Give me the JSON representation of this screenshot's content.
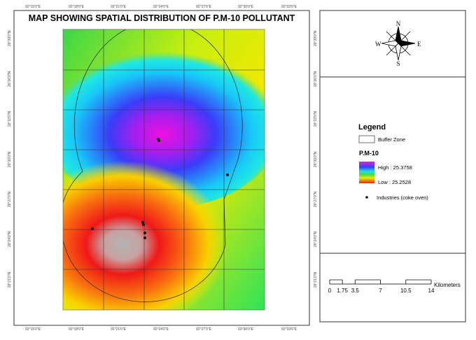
{
  "title": "MAP SHOWING SPATIAL DISTRIBUTION OF P.M-10 POLLUTANT",
  "map": {
    "top_labels": [
      "92°15'0\"E",
      "92°18'0\"E",
      "92°21'0\"E",
      "92°24'0\"E",
      "92°27'0\"E",
      "92°30'0\"E",
      "92°33'0\"E"
    ],
    "bottom_labels": [
      "92°15'0\"E",
      "92°18'0\"E",
      "92°21'0\"E",
      "92°24'0\"E",
      "92°27'0\"E",
      "92°30'0\"E",
      "92°33'0\"E"
    ],
    "left_labels": [
      "26°39'0\"N",
      "26°36'0\"N",
      "26°33'0\"N",
      "26°30'0\"N",
      "26°27'0\"N",
      "26°24'0\"N",
      "26°21'0\"N"
    ],
    "right_labels": [
      "26°39'0\"N",
      "26°36'0\"N",
      "26°33'0\"N",
      "26°30'0\"N",
      "26°27'0\"N",
      "26°24'0\"N",
      "26°21'0\"N"
    ]
  },
  "compass": {
    "n": "N",
    "s": "S",
    "e": "E",
    "w": "W"
  },
  "legend": {
    "title": "Legend",
    "buffer_zone": "Buffer Zone",
    "pm_title": "P.M-10",
    "high": "High : 25.3758",
    "low": "Low : 25.2528",
    "industries": "Industries (coke oven)"
  },
  "scale_bar": {
    "ticks": [
      0,
      1.75,
      3.5,
      7,
      10.5,
      14
    ],
    "unit": "Kilometers"
  }
}
